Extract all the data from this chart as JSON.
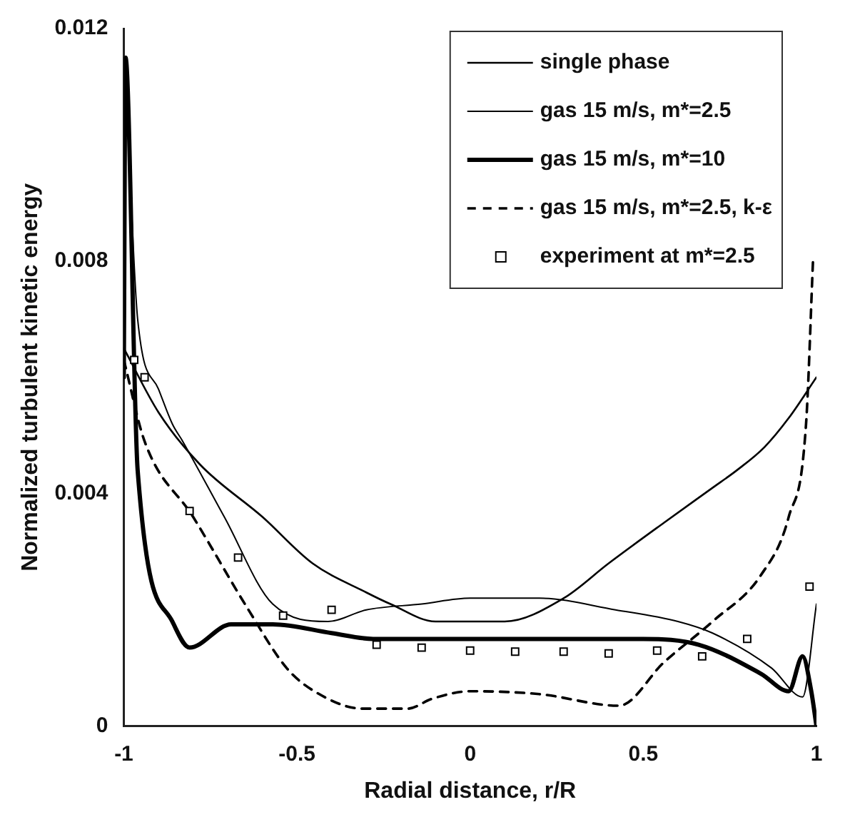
{
  "chart_data": {
    "type": "line",
    "xlabel": "Radial distance, r/R",
    "ylabel": "Normalized turbulent kinetic energy",
    "xlim": [
      -1,
      1
    ],
    "xticks": [
      -1,
      -0.5,
      0,
      0.5,
      1
    ],
    "ylim": [
      0,
      0.012
    ],
    "yticks": [
      0,
      0.004,
      0.008,
      0.012
    ],
    "grid": false,
    "legend": "top right",
    "series": [
      {
        "name": "single phase",
        "color": "#000000",
        "line_style": "solid",
        "marker": "none",
        "x": [
          -1,
          -0.9,
          -0.78,
          -0.6,
          -0.455,
          -0.3,
          -0.23,
          -0.1,
          0,
          0.1,
          0.27,
          0.4,
          0.56,
          0.7,
          0.77,
          0.85,
          0.92,
          1
        ],
        "values": [
          0.0065,
          0.0054,
          0.0045,
          0.0036,
          0.0028,
          0.0023,
          0.0021,
          0.0018,
          0.0018,
          0.0018,
          0.0022,
          0.0028,
          0.0035,
          0.0041,
          0.0044,
          0.0048,
          0.0053,
          0.006
        ]
      },
      {
        "name": "gas 15 m/s, m*=2.5",
        "color": "#000000",
        "line_style": "solid",
        "marker": "none",
        "x": [
          -0.99,
          -0.96,
          -0.9,
          -0.86,
          -0.83,
          -0.71,
          -0.57,
          -0.41,
          -0.3,
          -0.14,
          0,
          0.2,
          0.42,
          0.6,
          0.7,
          0.87,
          0.96,
          1
        ],
        "values": [
          0.0105,
          0.007,
          0.0058,
          0.0052,
          0.0049,
          0.0036,
          0.0021,
          0.0018,
          0.002,
          0.0021,
          0.0022,
          0.0022,
          0.002,
          0.0018,
          0.0016,
          0.001,
          0.0005,
          0.0021
        ]
      },
      {
        "name": "gas 15 m/s, m*=10",
        "color": "#000000",
        "line_style": "solid",
        "marker": "none",
        "x": [
          -1,
          -0.995,
          -0.96,
          -0.86,
          -0.81,
          -0.69,
          -0.57,
          -0.4,
          -0.28,
          0,
          0.3,
          0.5,
          0.66,
          0.84,
          0.92,
          0.96,
          0.985,
          1
        ],
        "values": [
          0.006,
          0.0115,
          0.0044,
          0.0018,
          0.00135,
          0.00175,
          0.00175,
          0.0016,
          0.0015,
          0.0015,
          0.0015,
          0.0015,
          0.0014,
          0.0009,
          0.0006,
          0.0012,
          0.0006,
          0
        ]
      },
      {
        "name": "gas 15 m/s, m*=2.5, k-ε",
        "color": "#000000",
        "line_style": "dashed",
        "marker": "none",
        "x": [
          -1,
          -0.94,
          -0.8,
          -0.64,
          -0.53,
          -0.45,
          -0.31,
          -0.18,
          -0.11,
          0,
          0.2,
          0.43,
          0.56,
          0.7,
          0.84,
          0.92,
          0.97,
          0.99
        ],
        "values": [
          0.0063,
          0.0049,
          0.0036,
          0.002,
          0.001,
          0.0006,
          0.0003,
          0.0003,
          0.00047,
          0.0006,
          0.00055,
          0.00035,
          0.0011,
          0.0018,
          0.0026,
          0.0036,
          0.0052,
          0.008
        ]
      },
      {
        "name": "experiment at m*=2.5",
        "type": "scatter",
        "color": "#000000",
        "marker": "square",
        "x": [
          -0.97,
          -0.94,
          -0.81,
          -0.67,
          -0.54,
          -0.4,
          -0.27,
          -0.14,
          0,
          0.13,
          0.27,
          0.4,
          0.54,
          0.67,
          0.8,
          0.98
        ],
        "values": [
          0.0063,
          0.006,
          0.0037,
          0.0029,
          0.0019,
          0.002,
          0.0014,
          0.00135,
          0.0013,
          0.00128,
          0.00128,
          0.00125,
          0.0013,
          0.0012,
          0.0015,
          0.0024
        ]
      }
    ]
  }
}
